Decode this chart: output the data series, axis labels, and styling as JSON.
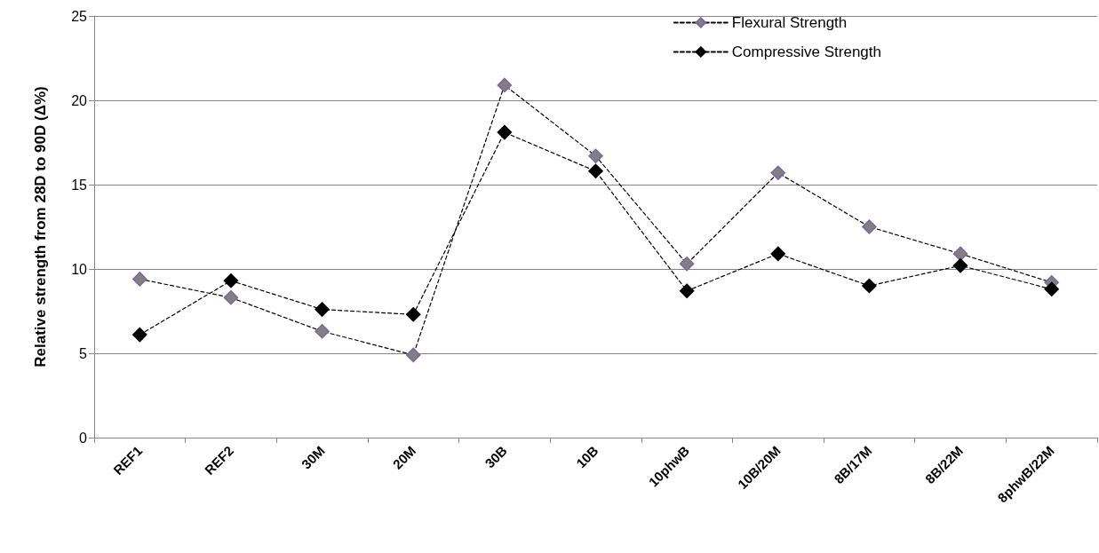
{
  "chart_data": {
    "type": "line",
    "ylabel": "Relative strength from 28D to 90D (Δ%)",
    "categories": [
      "REF1",
      "REF2",
      "30M",
      "20M",
      "30B",
      "10B",
      "10phwB",
      "10B/20M",
      "8B/17M",
      "8B/22M",
      "8phwB/22M"
    ],
    "series": [
      {
        "name": "Flexural Strength",
        "color": "#808080",
        "values": [
          9.4,
          8.3,
          6.3,
          4.9,
          20.9,
          16.7,
          10.3,
          15.7,
          12.5,
          10.9,
          9.2
        ]
      },
      {
        "name": "Compressive Strength",
        "color": "#000000",
        "values": [
          6.1,
          9.3,
          7.6,
          7.3,
          18.1,
          15.8,
          8.7,
          10.9,
          9.0,
          10.2,
          8.8
        ]
      }
    ],
    "ylim": [
      0,
      25
    ],
    "yticks": [
      0,
      5,
      10,
      15,
      20,
      25
    ],
    "grid": "y",
    "legend": "top right",
    "marker": "diamond",
    "line_style": "dashed"
  }
}
